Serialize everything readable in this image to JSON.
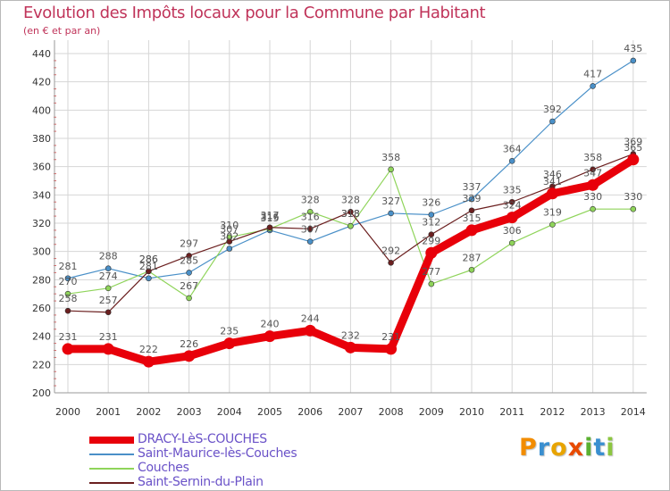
{
  "chart_data": {
    "type": "line",
    "title": "Evolution des Impôts locaux pour la Commune par Habitant",
    "subtitle": "(en € et par an)",
    "x": [
      "2000",
      "2001",
      "2002",
      "2003",
      "2004",
      "2005",
      "2006",
      "2007",
      "2008",
      "2009",
      "2010",
      "2011",
      "2012",
      "2013",
      "2014"
    ],
    "yticks": [
      "200",
      "220",
      "240",
      "260",
      "280",
      "300",
      "320",
      "340",
      "360",
      "380",
      "400",
      "420",
      "440"
    ],
    "ylim": [
      200,
      440
    ],
    "grid": true,
    "series": [
      {
        "name": "Saint-Maurice-lès-Couches",
        "color": "#4a90c8",
        "values": [
          281,
          288,
          281,
          285,
          302,
          315,
          307,
          318,
          327,
          326,
          337,
          364,
          392,
          417,
          435
        ],
        "labels": [
          "281",
          "288",
          "281",
          "285",
          "302",
          "315",
          "307",
          "318",
          "327",
          "326",
          "337",
          "364",
          "392",
          "417",
          "435"
        ]
      },
      {
        "name": "Couches",
        "color": "#8fd45a",
        "values": [
          270,
          274,
          286,
          267,
          310,
          316,
          328,
          318,
          358,
          277,
          287,
          306,
          319,
          330,
          330
        ],
        "labels": [
          "270",
          "274",
          "286",
          "267",
          "310",
          "316",
          "328",
          "318",
          "358",
          "277",
          "287",
          "306",
          "319",
          "330",
          "330"
        ]
      },
      {
        "name": "Saint-Sernin-du-Plain",
        "color": "#6b1f1f",
        "values": [
          258,
          257,
          286,
          297,
          307,
          317,
          316,
          328,
          292,
          312,
          329,
          335,
          346,
          358,
          369
        ],
        "labels": [
          "258",
          "257",
          "286",
          "297",
          "307",
          "317",
          "316",
          "328",
          "292",
          "312",
          "329",
          "335",
          "346",
          "358",
          "369"
        ]
      },
      {
        "name": "DRACY-LèS-COUCHES",
        "color": "#e8000a",
        "values": [
          231,
          231,
          222,
          226,
          235,
          240,
          244,
          232,
          231,
          299,
          315,
          324,
          341,
          347,
          365
        ],
        "labels": [
          "231",
          "231",
          "222",
          "226",
          "235",
          "240",
          "244",
          "232",
          "231",
          "299",
          "315",
          "324",
          "341",
          "347",
          "365"
        ]
      }
    ],
    "legend": [
      {
        "name": "DRACY-LèS-COUCHES",
        "color": "#e8000a"
      },
      {
        "name": "Saint-Maurice-lès-Couches",
        "color": "#4a90c8"
      },
      {
        "name": "Couches",
        "color": "#8fd45a"
      },
      {
        "name": "Saint-Sernin-du-Plain",
        "color": "#6b1f1f"
      }
    ],
    "legend_position": "bottom-left"
  },
  "logo": {
    "letters": [
      "P",
      "r",
      "o",
      "x",
      "i",
      "t",
      "i"
    ],
    "colors": [
      "#f28c00",
      "#3a8fd0",
      "#e8a400",
      "#e84a00",
      "#5ab030",
      "#3a8fd0",
      "#8cc640"
    ]
  }
}
